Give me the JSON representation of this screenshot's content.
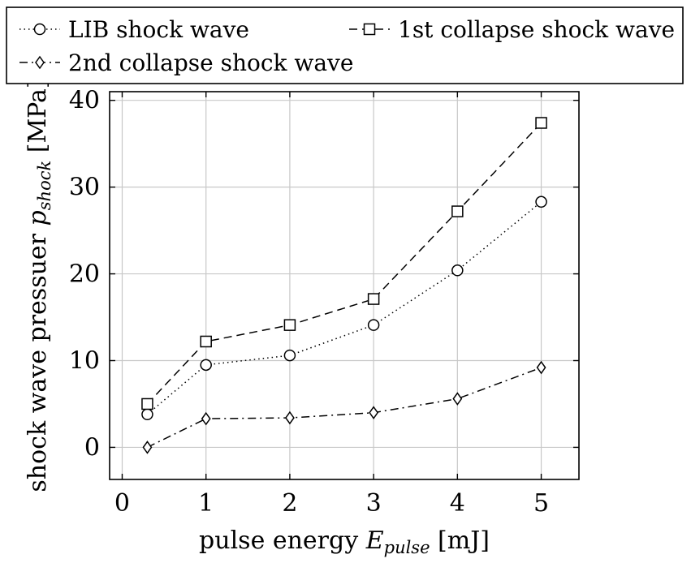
{
  "chart_data": {
    "type": "line",
    "xlabel": "pulse energy E_pulse [mJ]",
    "ylabel": "shock wave pressuer p_shock [MPa]",
    "xlabel_parts": {
      "prefix": "pulse energy ",
      "var": "E",
      "sub": "pulse",
      "suffix": " [mJ]"
    },
    "ylabel_parts": {
      "prefix": "shock wave pressuer ",
      "var": "p",
      "sub": "shock",
      "suffix": " [MPa]"
    },
    "xlim": [
      -0.15,
      5.45
    ],
    "ylim": [
      -3.7,
      41
    ],
    "xticks": [
      0,
      1,
      2,
      3,
      4,
      5
    ],
    "yticks": [
      0,
      10,
      20,
      30,
      40
    ],
    "grid": true,
    "legend_position": "top",
    "series": [
      {
        "name": "LIB shock wave",
        "marker": "circle",
        "line_style": "dotted",
        "x": [
          0.3,
          1,
          2,
          3,
          4,
          5
        ],
        "y": [
          3.8,
          9.5,
          10.6,
          14.1,
          20.4,
          28.3
        ]
      },
      {
        "name": "1st collapse shock wave",
        "marker": "square",
        "line_style": "dashed",
        "x": [
          0.3,
          1,
          2,
          3,
          4,
          5
        ],
        "y": [
          5.0,
          12.2,
          14.1,
          17.1,
          27.2,
          37.4
        ]
      },
      {
        "name": "2nd collapse shock wave",
        "marker": "diamond",
        "line_style": "dashdot",
        "x": [
          0.3,
          1,
          2,
          3,
          4,
          5
        ],
        "y": [
          0.0,
          3.3,
          3.4,
          4.0,
          5.6,
          9.2
        ]
      }
    ]
  }
}
